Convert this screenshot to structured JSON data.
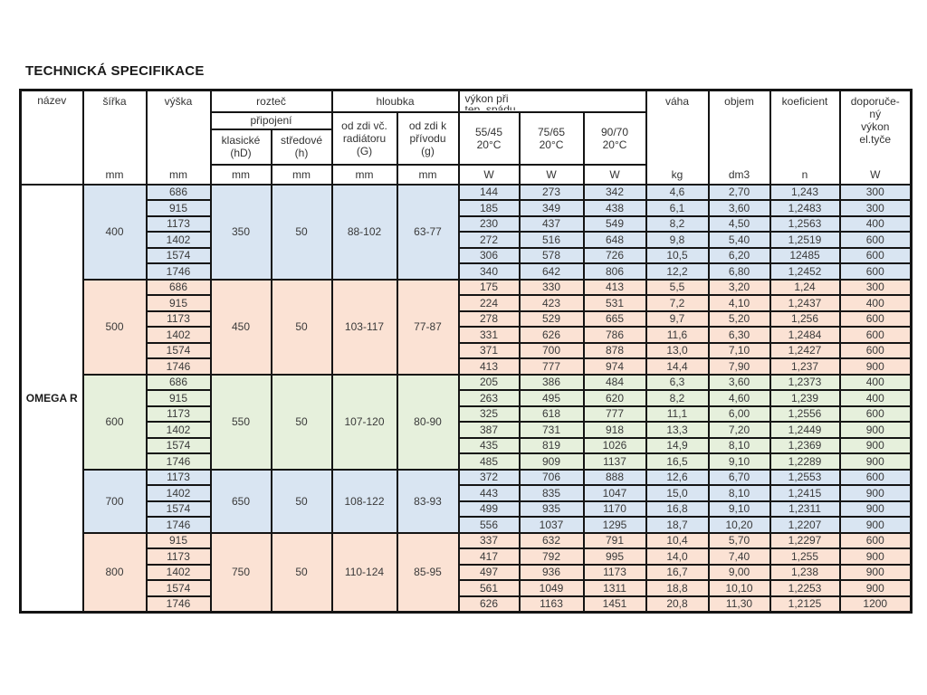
{
  "title": "TECHNICKÁ SPECIFIKACE",
  "colors": {
    "blue": "#d9e5f2",
    "peach": "#fbe2d4",
    "green": "#e6f0dc"
  },
  "units": {
    "mm": "mm",
    "W": "W",
    "kg": "kg",
    "dm3": "dm3",
    "n": "n"
  },
  "header": {
    "nazev": "název",
    "sirka": "šířka",
    "vyska": "výška",
    "roztec": "rozteč",
    "pripojeni": "připojení",
    "klasicke": [
      "klasické",
      "(hD)"
    ],
    "stredove": [
      "středové",
      "(h)"
    ],
    "hloubka": "hloubka",
    "od_zdi_vc": [
      "od zdi  vč.",
      "radiátoru",
      "(G)"
    ],
    "od_zdi_k": [
      "od zdi  k",
      "přívodu",
      "(g)"
    ],
    "vykon": [
      "výkon při",
      "tep. spádu"
    ],
    "temps": [
      [
        "55/45",
        "20°C"
      ],
      [
        "75/65",
        "20°C"
      ],
      [
        "90/70",
        "20°C"
      ]
    ],
    "vaha": "váha",
    "objem": "objem",
    "koeficient": "koeficient",
    "doporuceny": [
      "doporuče-",
      "ný",
      "výkon",
      "el.tyče"
    ]
  },
  "nazev_value": "OMEGA R",
  "groups": [
    {
      "sirka": "400",
      "color": "blue",
      "klasicke": "350",
      "stredove": "50",
      "G": "88-102",
      "g": "63-77",
      "rows": [
        {
          "vyska": "686",
          "w55": "144",
          "w75": "273",
          "w90": "342",
          "vaha": "4,6",
          "objem": "2,70",
          "koef": "1,243",
          "dop": "300"
        },
        {
          "vyska": "915",
          "w55": "185",
          "w75": "349",
          "w90": "438",
          "vaha": "6,1",
          "objem": "3,60",
          "koef": "1,2483",
          "dop": "300"
        },
        {
          "vyska": "1173",
          "w55": "230",
          "w75": "437",
          "w90": "549",
          "vaha": "8,2",
          "objem": "4,50",
          "koef": "1,2563",
          "dop": "400"
        },
        {
          "vyska": "1402",
          "w55": "272",
          "w75": "516",
          "w90": "648",
          "vaha": "9,8",
          "objem": "5,40",
          "koef": "1,2519",
          "dop": "600"
        },
        {
          "vyska": "1574",
          "w55": "306",
          "w75": "578",
          "w90": "726",
          "vaha": "10,5",
          "objem": "6,20",
          "koef": "12485",
          "dop": "600"
        },
        {
          "vyska": "1746",
          "w55": "340",
          "w75": "642",
          "w90": "806",
          "vaha": "12,2",
          "objem": "6,80",
          "koef": "1,2452",
          "dop": "600"
        }
      ]
    },
    {
      "sirka": "500",
      "color": "peach",
      "klasicke": "450",
      "stredove": "50",
      "G": "103-117",
      "g": "77-87",
      "rows": [
        {
          "vyska": "686",
          "w55": "175",
          "w75": "330",
          "w90": "413",
          "vaha": "5,5",
          "objem": "3,20",
          "koef": "1,24",
          "dop": "300"
        },
        {
          "vyska": "915",
          "w55": "224",
          "w75": "423",
          "w90": "531",
          "vaha": "7,2",
          "objem": "4,10",
          "koef": "1,2437",
          "dop": "400"
        },
        {
          "vyska": "1173",
          "w55": "278",
          "w75": "529",
          "w90": "665",
          "vaha": "9,7",
          "objem": "5,20",
          "koef": "1,256",
          "dop": "600"
        },
        {
          "vyska": "1402",
          "w55": "331",
          "w75": "626",
          "w90": "786",
          "vaha": "11,6",
          "objem": "6,30",
          "koef": "1,2484",
          "dop": "600"
        },
        {
          "vyska": "1574",
          "w55": "371",
          "w75": "700",
          "w90": "878",
          "vaha": "13,0",
          "objem": "7,10",
          "koef": "1,2427",
          "dop": "600"
        },
        {
          "vyska": "1746",
          "w55": "413",
          "w75": "777",
          "w90": "974",
          "vaha": "14,4",
          "objem": "7,90",
          "koef": "1,237",
          "dop": "900"
        }
      ]
    },
    {
      "sirka": "600",
      "color": "green",
      "klasicke": "550",
      "stredove": "50",
      "G": "107-120",
      "g": "80-90",
      "rows": [
        {
          "vyska": "686",
          "w55": "205",
          "w75": "386",
          "w90": "484",
          "vaha": "6,3",
          "objem": "3,60",
          "koef": "1,2373",
          "dop": "400"
        },
        {
          "vyska": "915",
          "w55": "263",
          "w75": "495",
          "w90": "620",
          "vaha": "8,2",
          "objem": "4,60",
          "koef": "1,239",
          "dop": "400"
        },
        {
          "vyska": "1173",
          "w55": "325",
          "w75": "618",
          "w90": "777",
          "vaha": "11,1",
          "objem": "6,00",
          "koef": "1,2556",
          "dop": "600"
        },
        {
          "vyska": "1402",
          "w55": "387",
          "w75": "731",
          "w90": "918",
          "vaha": "13,3",
          "objem": "7,20",
          "koef": "1,2449",
          "dop": "900"
        },
        {
          "vyska": "1574",
          "w55": "435",
          "w75": "819",
          "w90": "1026",
          "vaha": "14,9",
          "objem": "8,10",
          "koef": "1,2369",
          "dop": "900"
        },
        {
          "vyska": "1746",
          "w55": "485",
          "w75": "909",
          "w90": "1137",
          "vaha": "16,5",
          "objem": "9,10",
          "koef": "1,2289",
          "dop": "900"
        }
      ]
    },
    {
      "sirka": "700",
      "color": "blue",
      "klasicke": "650",
      "stredove": "50",
      "G": "108-122",
      "g": "83-93",
      "rows": [
        {
          "vyska": "1173",
          "w55": "372",
          "w75": "706",
          "w90": "888",
          "vaha": "12,6",
          "objem": "6,70",
          "koef": "1,2553",
          "dop": "600"
        },
        {
          "vyska": "1402",
          "w55": "443",
          "w75": "835",
          "w90": "1047",
          "vaha": "15,0",
          "objem": "8,10",
          "koef": "1,2415",
          "dop": "900"
        },
        {
          "vyska": "1574",
          "w55": "499",
          "w75": "935",
          "w90": "1170",
          "vaha": "16,8",
          "objem": "9,10",
          "koef": "1,2311",
          "dop": "900"
        },
        {
          "vyska": "1746",
          "w55": "556",
          "w75": "1037",
          "w90": "1295",
          "vaha": "18,7",
          "objem": "10,20",
          "koef": "1,2207",
          "dop": "900"
        }
      ]
    },
    {
      "sirka": "800",
      "color": "peach",
      "klasicke": "750",
      "stredove": "50",
      "G": "110-124",
      "g": "85-95",
      "rows": [
        {
          "vyska": "915",
          "w55": "337",
          "w75": "632",
          "w90": "791",
          "vaha": "10,4",
          "objem": "5,70",
          "koef": "1,2297",
          "dop": "600"
        },
        {
          "vyska": "1173",
          "w55": "417",
          "w75": "792",
          "w90": "995",
          "vaha": "14,0",
          "objem": "7,40",
          "koef": "1,255",
          "dop": "900"
        },
        {
          "vyska": "1402",
          "w55": "497",
          "w75": "936",
          "w90": "1173",
          "vaha": "16,7",
          "objem": "9,00",
          "koef": "1,238",
          "dop": "900"
        },
        {
          "vyska": "1574",
          "w55": "561",
          "w75": "1049",
          "w90": "1311",
          "vaha": "18,8",
          "objem": "10,10",
          "koef": "1,2253",
          "dop": "900"
        },
        {
          "vyska": "1746",
          "w55": "626",
          "w75": "1163",
          "w90": "1451",
          "vaha": "20,8",
          "objem": "11,30",
          "koef": "1,2125",
          "dop": "1200"
        }
      ]
    }
  ]
}
